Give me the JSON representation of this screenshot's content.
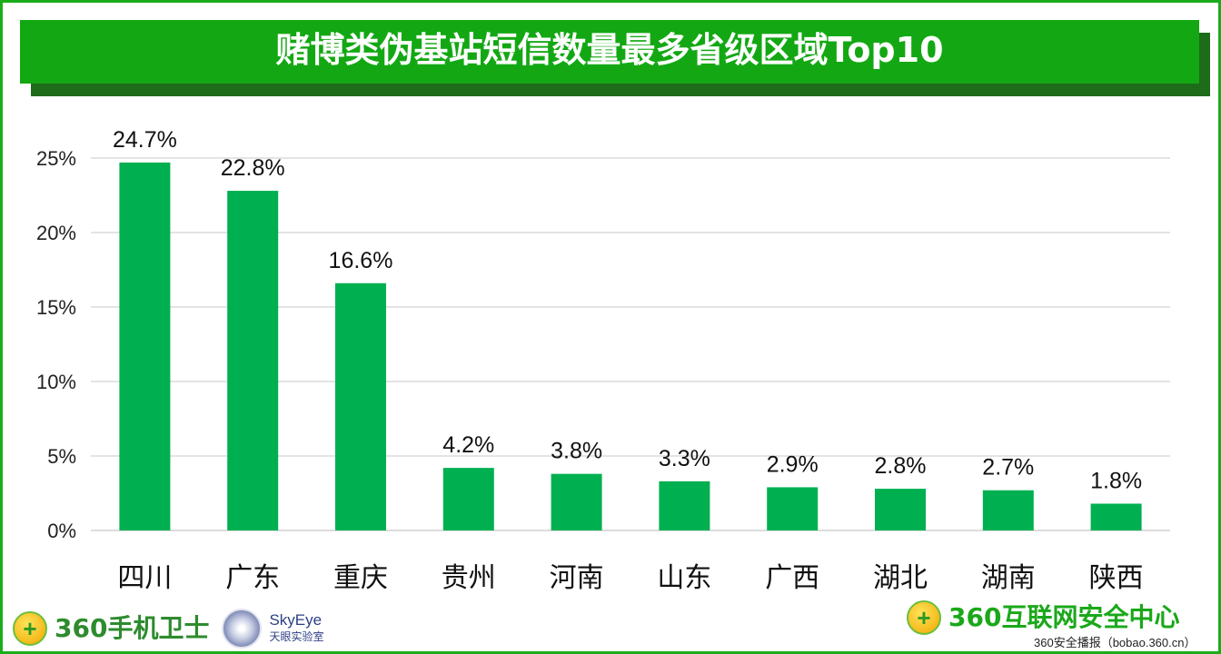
{
  "title": "赌博类伪基站短信数量最多省级区域Top10",
  "chart_data": {
    "type": "bar",
    "title": "赌博类伪基站短信数量最多省级区域Top10",
    "categories": [
      "四川",
      "广东",
      "重庆",
      "贵州",
      "河南",
      "山东",
      "广西",
      "湖北",
      "湖南",
      "陕西"
    ],
    "values": [
      24.7,
      22.8,
      16.6,
      4.2,
      3.8,
      3.3,
      2.9,
      2.8,
      2.7,
      1.8
    ],
    "data_labels": [
      "24.7%",
      "22.8%",
      "16.6%",
      "4.2%",
      "3.8%",
      "3.3%",
      "2.9%",
      "2.8%",
      "2.7%",
      "1.8%"
    ],
    "yticks": [
      "0%",
      "5%",
      "10%",
      "15%",
      "20%",
      "25%"
    ],
    "ylim": [
      0,
      25
    ],
    "grid": true,
    "bar_color": "#00B050",
    "xlabel": "",
    "ylabel": ""
  },
  "footer": {
    "logo_left": "360手机卫士",
    "logo_skyeye_en": "SkyEye",
    "logo_skyeye_cn": "天眼实验室",
    "logo_right": "360互联网安全中心",
    "credit": "360安全播报（bobao.360.cn）"
  }
}
